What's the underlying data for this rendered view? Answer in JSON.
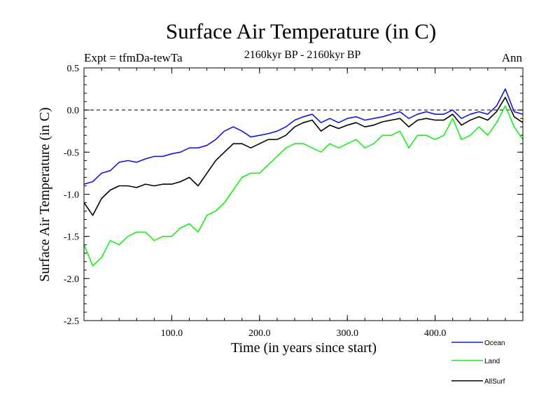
{
  "chart_data": {
    "type": "line",
    "title": "Surface Air Temperature (in C)",
    "subtitle": "2160kyr BP - 2160kyr BP",
    "left_label": "Expt = tfmDa-tewTa",
    "right_label": "Ann",
    "xlabel": "Time (in years since start)",
    "ylabel": "Surface Air Temperature (in C)",
    "xlim": [
      0,
      500
    ],
    "ylim": [
      -2.5,
      0.5
    ],
    "xticks": [
      100,
      200,
      300,
      400
    ],
    "xtick_labels": [
      "100.0",
      "200.0",
      "300.0",
      "400.0"
    ],
    "yticks": [
      -2.5,
      -2.0,
      -1.5,
      -1.0,
      -0.5,
      0.0,
      0.5
    ],
    "ytick_labels": [
      "-2.5",
      "-2.0",
      "-1.5",
      "-1.0",
      "-0.5",
      "0.0",
      "0.5"
    ],
    "reference_line": {
      "y": 0.0,
      "style": "dashed"
    },
    "legend_position": "bottom-right",
    "series": [
      {
        "name": "Ocean",
        "color": "#1414dc",
        "x": [
          0,
          10,
          20,
          30,
          40,
          50,
          60,
          70,
          80,
          90,
          100,
          110,
          120,
          130,
          140,
          150,
          160,
          170,
          180,
          190,
          200,
          210,
          220,
          230,
          240,
          250,
          260,
          270,
          280,
          290,
          300,
          310,
          320,
          330,
          340,
          350,
          360,
          370,
          380,
          390,
          400,
          410,
          420,
          430,
          440,
          450,
          460,
          470,
          480,
          490,
          500
        ],
        "y": [
          -0.88,
          -0.85,
          -0.75,
          -0.72,
          -0.62,
          -0.6,
          -0.62,
          -0.58,
          -0.55,
          -0.55,
          -0.52,
          -0.5,
          -0.45,
          -0.45,
          -0.42,
          -0.35,
          -0.25,
          -0.2,
          -0.25,
          -0.32,
          -0.3,
          -0.28,
          -0.25,
          -0.2,
          -0.12,
          -0.08,
          -0.05,
          -0.15,
          -0.1,
          -0.15,
          -0.1,
          -0.08,
          -0.12,
          -0.1,
          -0.08,
          -0.05,
          -0.02,
          -0.1,
          -0.05,
          -0.02,
          -0.05,
          -0.05,
          0.0,
          -0.1,
          -0.05,
          -0.02,
          -0.05,
          0.05,
          0.25,
          -0.02,
          -0.05
        ]
      },
      {
        "name": "Land",
        "color": "#14ee14",
        "x": [
          0,
          10,
          20,
          30,
          40,
          50,
          60,
          70,
          80,
          90,
          100,
          110,
          120,
          130,
          140,
          150,
          160,
          170,
          180,
          190,
          200,
          210,
          220,
          230,
          240,
          250,
          260,
          270,
          280,
          290,
          300,
          310,
          320,
          330,
          340,
          350,
          360,
          370,
          380,
          390,
          400,
          410,
          420,
          430,
          440,
          450,
          460,
          470,
          480,
          490,
          500
        ],
        "y": [
          -1.6,
          -1.85,
          -1.75,
          -1.55,
          -1.6,
          -1.5,
          -1.45,
          -1.45,
          -1.55,
          -1.5,
          -1.5,
          -1.4,
          -1.35,
          -1.45,
          -1.25,
          -1.2,
          -1.1,
          -0.95,
          -0.8,
          -0.75,
          -0.75,
          -0.65,
          -0.55,
          -0.45,
          -0.4,
          -0.4,
          -0.45,
          -0.5,
          -0.4,
          -0.45,
          -0.4,
          -0.35,
          -0.45,
          -0.4,
          -0.3,
          -0.3,
          -0.25,
          -0.45,
          -0.3,
          -0.3,
          -0.35,
          -0.3,
          -0.1,
          -0.35,
          -0.3,
          -0.2,
          -0.3,
          -0.15,
          0.05,
          -0.2,
          -0.35
        ]
      },
      {
        "name": "AllSurf",
        "color": "#000000",
        "x": [
          0,
          10,
          20,
          30,
          40,
          50,
          60,
          70,
          80,
          90,
          100,
          110,
          120,
          130,
          140,
          150,
          160,
          170,
          180,
          190,
          200,
          210,
          220,
          230,
          240,
          250,
          260,
          270,
          280,
          290,
          300,
          310,
          320,
          330,
          340,
          350,
          360,
          370,
          380,
          390,
          400,
          410,
          420,
          430,
          440,
          450,
          460,
          470,
          480,
          490,
          500
        ],
        "y": [
          -1.1,
          -1.25,
          -1.05,
          -0.95,
          -0.9,
          -0.9,
          -0.92,
          -0.88,
          -0.9,
          -0.88,
          -0.88,
          -0.85,
          -0.8,
          -0.9,
          -0.75,
          -0.6,
          -0.5,
          -0.4,
          -0.4,
          -0.45,
          -0.4,
          -0.35,
          -0.35,
          -0.3,
          -0.2,
          -0.15,
          -0.12,
          -0.25,
          -0.18,
          -0.22,
          -0.18,
          -0.15,
          -0.2,
          -0.18,
          -0.14,
          -0.12,
          -0.1,
          -0.2,
          -0.12,
          -0.1,
          -0.12,
          -0.12,
          -0.05,
          -0.18,
          -0.12,
          -0.08,
          -0.12,
          -0.02,
          0.15,
          -0.08,
          -0.15
        ]
      }
    ]
  }
}
